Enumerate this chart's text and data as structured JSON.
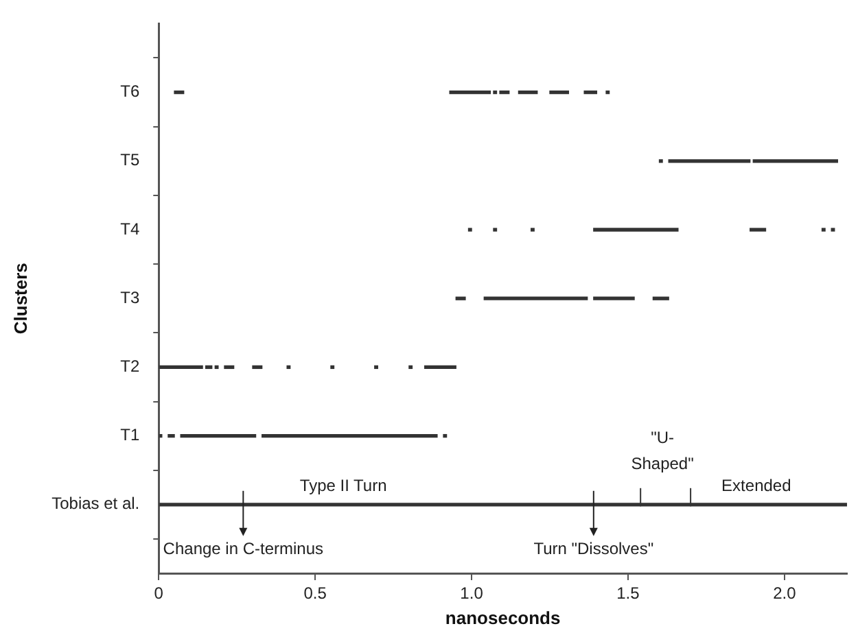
{
  "chart_data": {
    "type": "bar",
    "orientation": "horizontal",
    "xlabel": "nanoseconds",
    "ylabel": "Clusters",
    "grid": false,
    "legend": false,
    "xlim": [
      0,
      2.2
    ],
    "xticks": [
      0,
      0.5,
      {
        "value": 1,
        "label": "1.0"
      },
      1.5,
      {
        "value": 2,
        "label": "2.0"
      }
    ],
    "categories": [
      "T6",
      "T5",
      "T4",
      "T3",
      "T2",
      "T1",
      "Tobias et al."
    ],
    "series": [
      {
        "color": "#333333",
        "base": [
          0.05,
          1.6,
          0.99,
          0.95,
          0,
          0,
          0
        ],
        "values": [
          0.03,
          0.01,
          0.01,
          0.03,
          0.14,
          0.01,
          1.54
        ]
      },
      {
        "color": "#333333",
        "base": [
          0.93,
          1.63,
          1.07,
          1.04,
          0.15,
          0.03,
          1.54
        ],
        "values": [
          0.13,
          0.26,
          0.01,
          0.33,
          0.02,
          0.02,
          0.16
        ]
      },
      {
        "color": "#333333",
        "base": [
          1.07,
          1.9,
          1.19,
          1.39,
          0.18,
          0.07,
          1.7
        ],
        "values": [
          0.01,
          0.27,
          0.01,
          0.13,
          0.01,
          0.24,
          0.5
        ]
      },
      {
        "color": "#333333",
        "base": [
          1.09,
          null,
          1.39,
          1.58,
          0.21,
          0.33,
          null
        ],
        "values": [
          0.03,
          null,
          0.27,
          0.05,
          0.03,
          0.56,
          null
        ]
      },
      {
        "color": "#333333",
        "base": [
          1.15,
          null,
          1.89,
          null,
          0.3,
          0.91,
          null
        ],
        "values": [
          0.06,
          null,
          0.05,
          null,
          0.03,
          0.01,
          null
        ]
      },
      {
        "color": "#333333",
        "base": [
          1.25,
          null,
          2.12,
          null,
          0.41,
          null,
          null
        ],
        "values": [
          0.06,
          null,
          0.01,
          null,
          0.01,
          null,
          null
        ]
      },
      {
        "color": "#333333",
        "base": [
          1.36,
          null,
          2.15,
          null,
          0.55,
          null,
          null
        ],
        "values": [
          0.04,
          null,
          0.01,
          null,
          0.01,
          null,
          null
        ]
      },
      {
        "color": "#333333",
        "base": [
          1.43,
          null,
          null,
          null,
          0.69,
          null,
          null
        ],
        "values": [
          0.01,
          null,
          null,
          null,
          0.01,
          null,
          null
        ]
      },
      {
        "color": "#333333",
        "base": [
          null,
          null,
          null,
          null,
          0.8,
          null,
          null
        ],
        "values": [
          null,
          null,
          null,
          null,
          0.01,
          null,
          null
        ]
      },
      {
        "color": "#333333",
        "base": [
          null,
          null,
          null,
          null,
          0.85,
          null,
          null
        ],
        "values": [
          null,
          null,
          null,
          null,
          0.1,
          null,
          null
        ]
      }
    ],
    "annotations": [
      "Type II Turn",
      "Change in C-terminus",
      "Turn \"Dissolves\"",
      "\"U-Shaped\"",
      "Extended"
    ]
  }
}
